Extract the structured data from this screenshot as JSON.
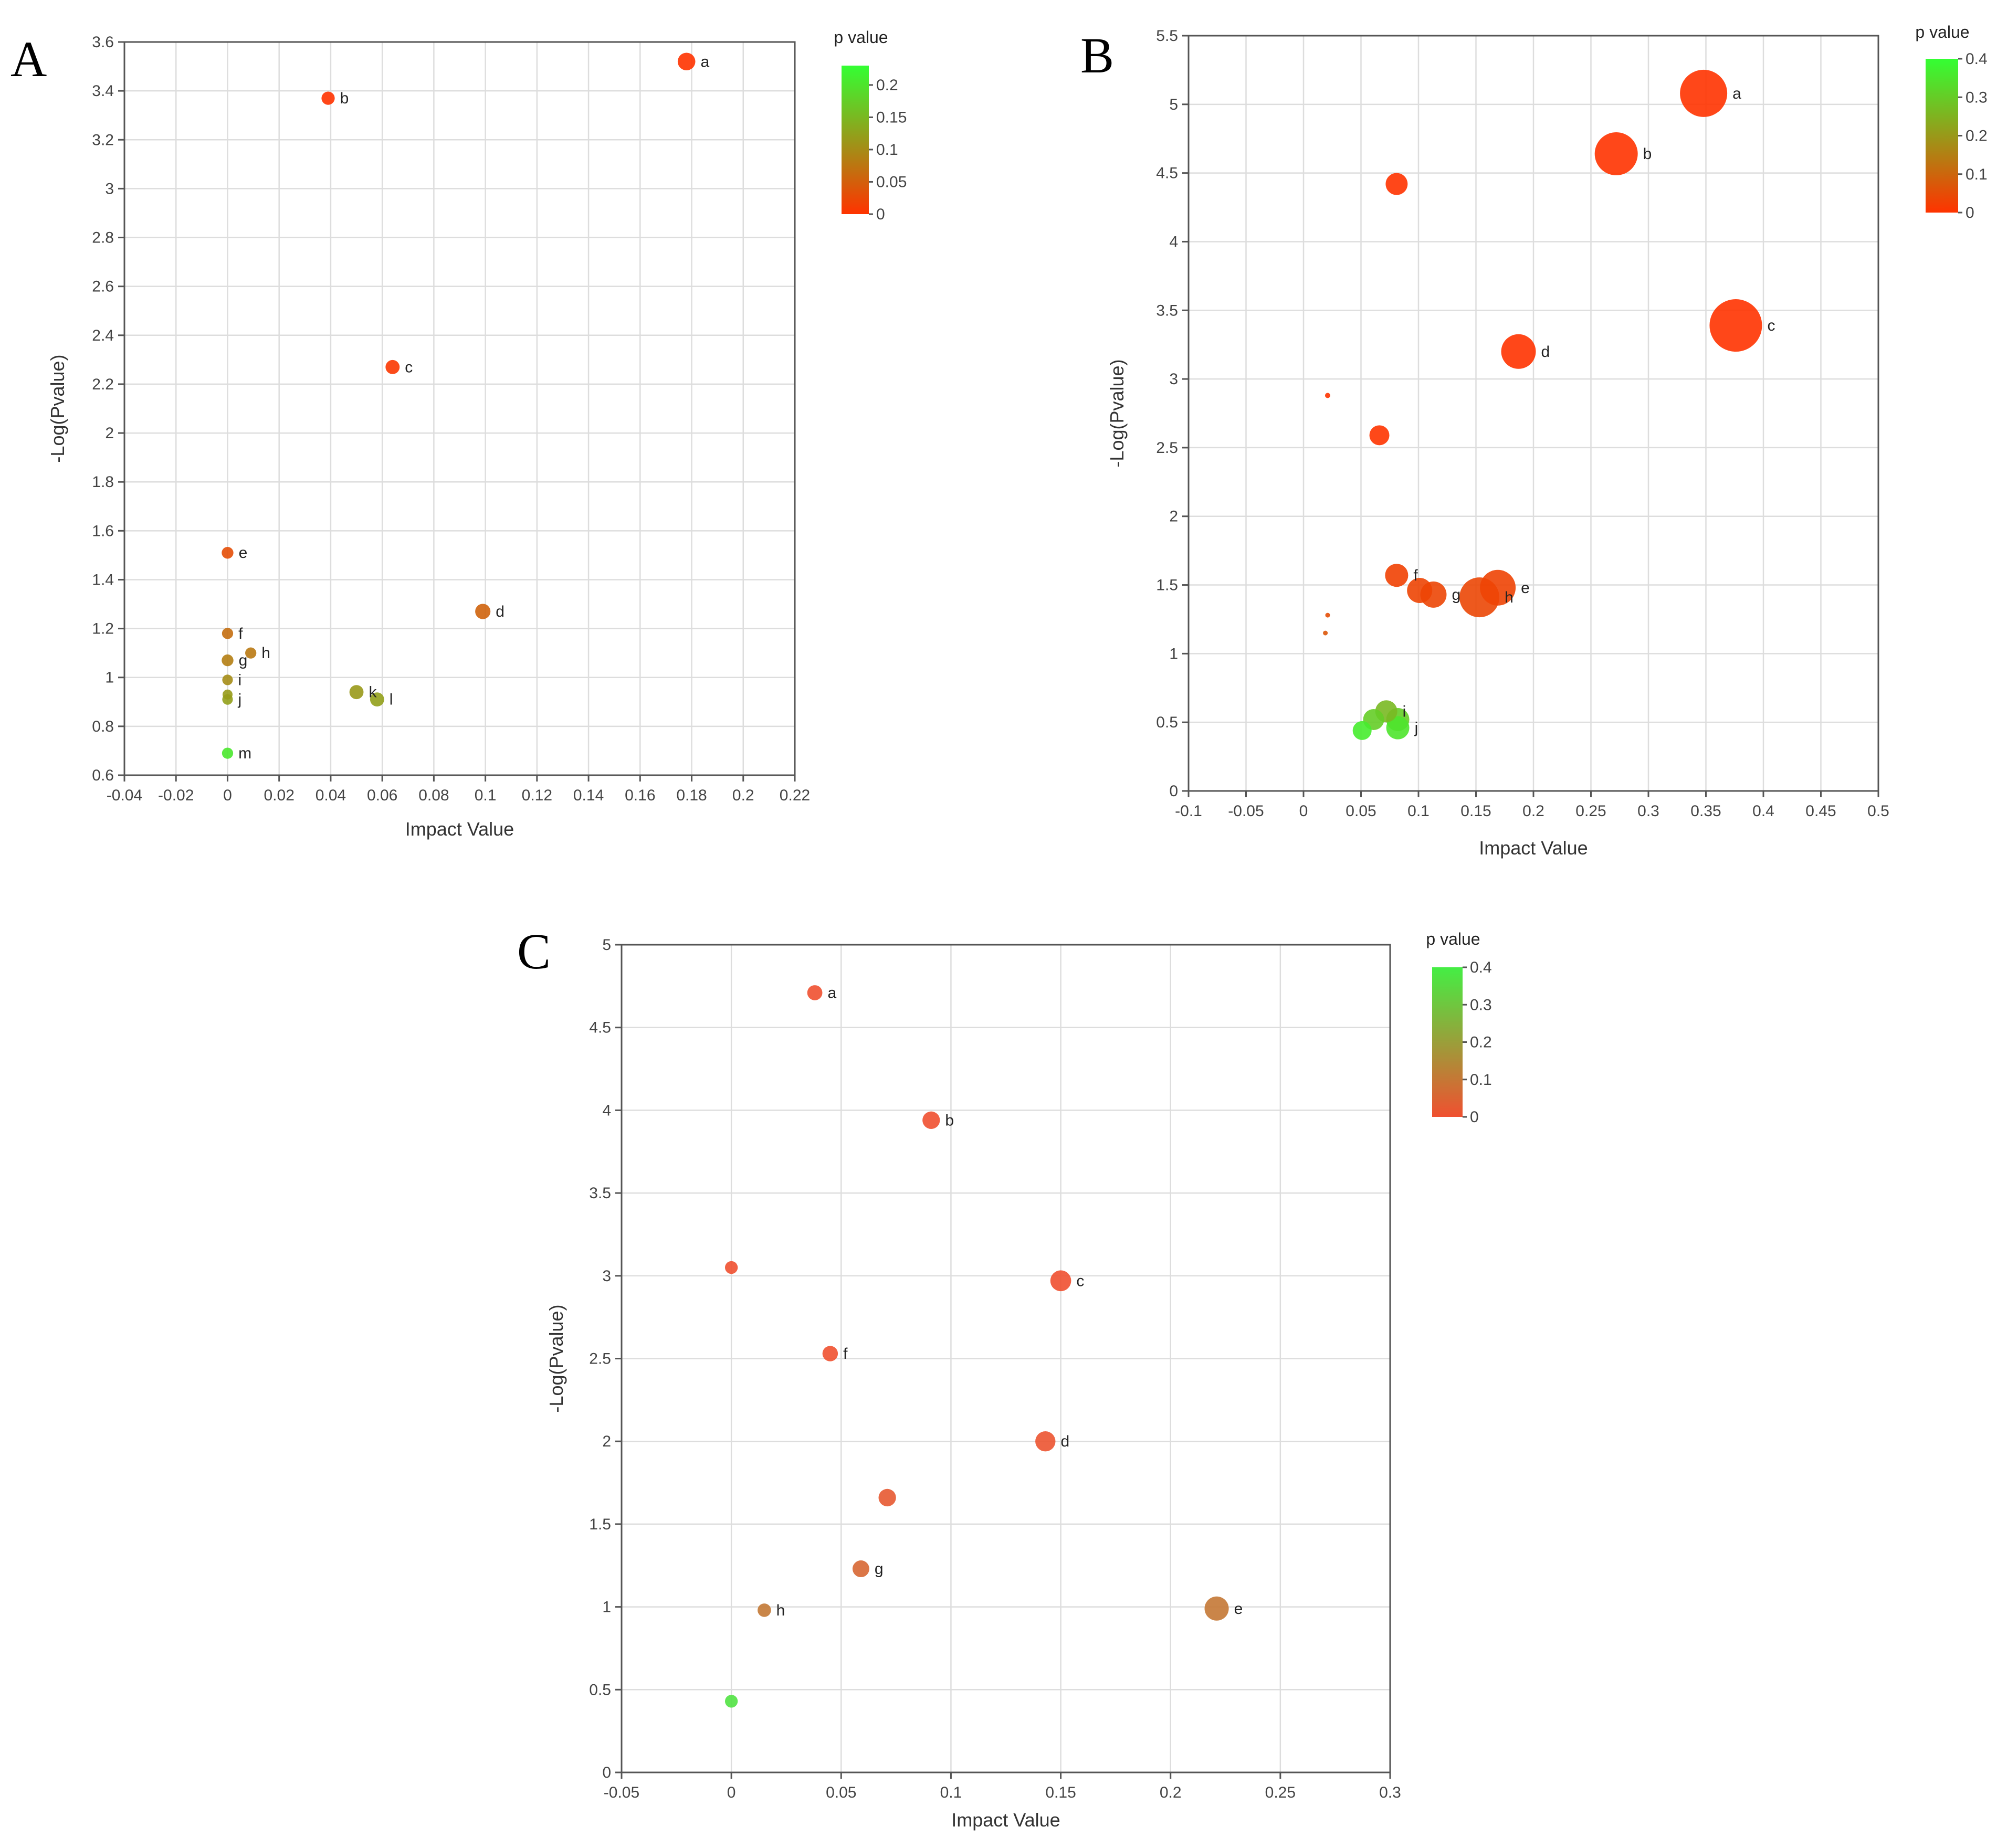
{
  "chart_data": [
    {
      "type": "scatter",
      "panel": "A",
      "xlabel": "Impact Value",
      "ylabel": "-Log(Pvalue)",
      "xlim": [
        -0.04,
        0.22
      ],
      "ylim": [
        0.6,
        3.6
      ],
      "xticks": [
        -0.04,
        -0.02,
        0,
        0.02,
        0.04,
        0.06,
        0.08,
        0.1,
        0.12,
        0.14,
        0.16,
        0.18,
        0.2,
        0.22
      ],
      "xtick_labels": [
        "-0.04",
        "-0.02",
        "0",
        "0.02",
        "0.04",
        "0.06",
        "0.08",
        "0.1",
        "0.12",
        "0.14",
        "0.16",
        "0.18",
        "0.2",
        "0.22"
      ],
      "yticks": [
        0.6,
        0.8,
        1,
        1.2,
        1.4,
        1.6,
        1.8,
        2,
        2.2,
        2.4,
        2.6,
        2.8,
        3,
        3.2,
        3.4,
        3.6
      ],
      "ytick_labels": [
        "0.6",
        "0.8",
        "1",
        "1.2",
        "1.4",
        "1.6",
        "1.8",
        "2",
        "2.2",
        "2.4",
        "2.6",
        "2.8",
        "3",
        "3.2",
        "3.4",
        "3.6"
      ],
      "legend": {
        "title": "p value",
        "min": 0,
        "max": 0.23,
        "ticks": [
          0,
          0.05,
          0.1,
          0.15,
          0.2
        ],
        "tick_labels": [
          "0",
          "0.05",
          "0.1",
          "0.15",
          "0.2"
        ]
      },
      "color_low": "#ff3300",
      "color_high": "#33ff33",
      "points": [
        {
          "label": "a",
          "x": 0.178,
          "y": 3.52,
          "size": 0.6,
          "p": 0.0003
        },
        {
          "label": "b",
          "x": 0.039,
          "y": 3.37,
          "size": 0.45,
          "p": 0.0004
        },
        {
          "label": "c",
          "x": 0.064,
          "y": 2.27,
          "size": 0.48,
          "p": 0.005
        },
        {
          "label": "d",
          "x": 0.099,
          "y": 1.27,
          "size": 0.52,
          "p": 0.054
        },
        {
          "label": "e",
          "x": 0,
          "y": 1.51,
          "size": 0.4,
          "p": 0.031
        },
        {
          "label": "f",
          "x": 0,
          "y": 1.18,
          "size": 0.38,
          "p": 0.066
        },
        {
          "label": "g",
          "x": 0,
          "y": 1.07,
          "size": 0.4,
          "p": 0.085
        },
        {
          "label": "h",
          "x": 0.009,
          "y": 1.1,
          "size": 0.38,
          "p": 0.079
        },
        {
          "label": "i",
          "x": 0,
          "y": 0.99,
          "size": 0.36,
          "p": 0.102
        },
        {
          "label": "j",
          "x": 0,
          "y": 0.91,
          "size": 0.36,
          "p": 0.123
        },
        {
          "label": "",
          "x": 0,
          "y": 0.93,
          "size": 0.34,
          "p": 0.117
        },
        {
          "label": "k",
          "x": 0.05,
          "y": 0.94,
          "size": 0.48,
          "p": 0.115
        },
        {
          "label": "l",
          "x": 0.058,
          "y": 0.91,
          "size": 0.48,
          "p": 0.123
        },
        {
          "label": "m",
          "x": 0,
          "y": 0.69,
          "size": 0.38,
          "p": 0.204
        }
      ]
    },
    {
      "type": "scatter",
      "panel": "B",
      "xlabel": "Impact Value",
      "ylabel": "-Log(Pvalue)",
      "xlim": [
        -0.1,
        0.5
      ],
      "ylim": [
        0,
        5.5
      ],
      "xticks": [
        -0.1,
        -0.05,
        0,
        0.05,
        0.1,
        0.15,
        0.2,
        0.25,
        0.3,
        0.35,
        0.4,
        0.45,
        0.5
      ],
      "xtick_labels": [
        "-0.1",
        "-0.05",
        "0",
        "0.05",
        "0.1",
        "0.15",
        "0.2",
        "0.25",
        "0.3",
        "0.35",
        "0.4",
        "0.45",
        "0.5"
      ],
      "yticks": [
        0,
        0.5,
        1,
        1.5,
        2,
        2.5,
        3,
        3.5,
        4,
        4.5,
        5,
        5.5
      ],
      "ytick_labels": [
        "0",
        "0.5",
        "1",
        "1.5",
        "2",
        "2.5",
        "3",
        "3.5",
        "4",
        "4.5",
        "5",
        "5.5"
      ],
      "legend": {
        "title": "p value",
        "min": 0,
        "max": 0.4,
        "ticks": [
          0,
          0.1,
          0.2,
          0.3,
          0.4
        ],
        "tick_labels": [
          "0",
          "0.1",
          "0.2",
          "0.3",
          "0.4"
        ]
      },
      "color_low": "#ff3300",
      "color_high": "#33ff33",
      "points": [
        {
          "label": "a",
          "x": 0.348,
          "y": 5.08,
          "size": 0.9,
          "p": 1e-05
        },
        {
          "label": "b",
          "x": 0.272,
          "y": 4.64,
          "size": 0.82,
          "p": 2e-05
        },
        {
          "label": "",
          "x": 0.081,
          "y": 4.42,
          "size": 0.42,
          "p": 4e-05
        },
        {
          "label": "c",
          "x": 0.376,
          "y": 3.39,
          "size": 1.0,
          "p": 0.0004
        },
        {
          "label": "d",
          "x": 0.187,
          "y": 3.2,
          "size": 0.66,
          "p": 0.0006
        },
        {
          "label": "",
          "x": 0.021,
          "y": 2.88,
          "size": 0.1,
          "p": 0.0013
        },
        {
          "label": "",
          "x": 0.066,
          "y": 2.59,
          "size": 0.38,
          "p": 0.0026
        },
        {
          "label": "f",
          "x": 0.081,
          "y": 1.57,
          "size": 0.44,
          "p": 0.027
        },
        {
          "label": "",
          "x": 0.101,
          "y": 1.46,
          "size": 0.48,
          "p": 0.035
        },
        {
          "label": "g",
          "x": 0.113,
          "y": 1.43,
          "size": 0.5,
          "p": 0.037
        },
        {
          "label": "e",
          "x": 0.169,
          "y": 1.48,
          "size": 0.68,
          "p": 0.033
        },
        {
          "label": "h",
          "x": 0.153,
          "y": 1.41,
          "size": 0.76,
          "p": 0.039
        },
        {
          "label": "",
          "x": 0.021,
          "y": 1.28,
          "size": 0.09,
          "p": 0.052
        },
        {
          "label": "",
          "x": 0.019,
          "y": 1.15,
          "size": 0.09,
          "p": 0.071
        },
        {
          "label": "i",
          "x": 0.072,
          "y": 0.58,
          "size": 0.42,
          "p": 0.263
        },
        {
          "label": "",
          "x": 0.061,
          "y": 0.52,
          "size": 0.4,
          "p": 0.302
        },
        {
          "label": "",
          "x": 0.051,
          "y": 0.44,
          "size": 0.36,
          "p": 0.363
        },
        {
          "label": "",
          "x": 0.082,
          "y": 0.52,
          "size": 0.44,
          "p": 0.302
        },
        {
          "label": "j",
          "x": 0.082,
          "y": 0.46,
          "size": 0.44,
          "p": 0.347
        }
      ]
    },
    {
      "type": "scatter",
      "panel": "C",
      "xlabel": "Impact Value",
      "ylabel": "-Log(Pvalue)",
      "xlim": [
        -0.05,
        0.3
      ],
      "ylim": [
        0,
        5
      ],
      "xticks": [
        -0.05,
        0,
        0.05,
        0.1,
        0.15,
        0.2,
        0.25,
        0.3
      ],
      "xtick_labels": [
        "-0.05",
        "0",
        "0.05",
        "0.1",
        "0.15",
        "0.2",
        "0.25",
        "0.3"
      ],
      "yticks": [
        0,
        0.5,
        1,
        1.5,
        2,
        2.5,
        3,
        3.5,
        4,
        4.5,
        5
      ],
      "ytick_labels": [
        "0",
        "0.5",
        "1",
        "1.5",
        "2",
        "2.5",
        "3",
        "3.5",
        "4",
        "4.5",
        "5"
      ],
      "legend": {
        "title": "p value",
        "min": 0,
        "max": 0.4,
        "ticks": [
          0,
          0.1,
          0.2,
          0.3,
          0.4
        ],
        "tick_labels": [
          "0",
          "0.1",
          "0.2",
          "0.3",
          "0.4"
        ]
      },
      "color_low": "#f05030",
      "color_high": "#44ee44",
      "points": [
        {
          "label": "a",
          "x": 0.038,
          "y": 4.71,
          "size": 0.45,
          "p": 2e-05
        },
        {
          "label": "b",
          "x": 0.091,
          "y": 3.94,
          "size": 0.52,
          "p": 0.0001
        },
        {
          "label": "",
          "x": 0,
          "y": 3.05,
          "size": 0.38,
          "p": 0.0009
        },
        {
          "label": "c",
          "x": 0.15,
          "y": 2.97,
          "size": 0.62,
          "p": 0.0011
        },
        {
          "label": "f",
          "x": 0.045,
          "y": 2.53,
          "size": 0.46,
          "p": 0.003
        },
        {
          "label": "d",
          "x": 0.143,
          "y": 2.0,
          "size": 0.6,
          "p": 0.01
        },
        {
          "label": "",
          "x": 0.071,
          "y": 1.66,
          "size": 0.52,
          "p": 0.022
        },
        {
          "label": "g",
          "x": 0.059,
          "y": 1.23,
          "size": 0.5,
          "p": 0.059
        },
        {
          "label": "h",
          "x": 0.015,
          "y": 0.98,
          "size": 0.4,
          "p": 0.105
        },
        {
          "label": "e",
          "x": 0.221,
          "y": 0.99,
          "size": 0.72,
          "p": 0.102
        },
        {
          "label": "",
          "x": 0,
          "y": 0.43,
          "size": 0.38,
          "p": 0.37
        }
      ]
    }
  ]
}
